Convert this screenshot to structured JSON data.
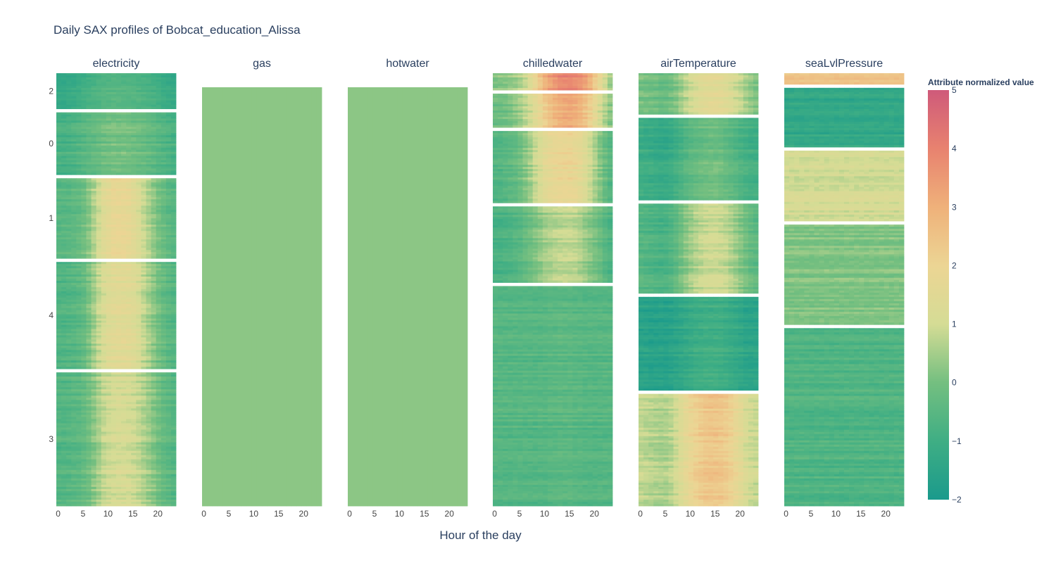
{
  "chart_data": {
    "type": "heatmap",
    "title": "Daily SAX profiles of Bobcat_education_Alissa",
    "xlabel": "Hour of the day",
    "x_tick_labels": [
      "0",
      "5",
      "10",
      "15",
      "20"
    ],
    "x_range": [
      0,
      23
    ],
    "colorbar": {
      "title": "Attribute normalized value",
      "range": [
        -2,
        5
      ],
      "tick_labels": [
        "5",
        "4",
        "3",
        "2",
        "1",
        "0",
        "−1",
        "−2"
      ],
      "colorscale": [
        "#1a9a8c",
        "#3fae84",
        "#74bf80",
        "#d5dc95",
        "#ecd594",
        "#efb17a",
        "#e8826f",
        "#cf5a7a"
      ]
    },
    "panels": [
      {
        "name": "electricity",
        "cluster_labels": [
          "2",
          "0",
          "1",
          "4",
          "3"
        ],
        "clusters": [
          {
            "label": "2",
            "rows": 40,
            "profile": [
              -1.4,
              -1.4,
              -1.35,
              -1.3,
              -1.2,
              -1.1,
              -1.0,
              -0.9,
              -0.8,
              -0.7,
              -0.7,
              -0.65,
              -0.65,
              -0.7,
              -0.7,
              -0.75,
              -0.8,
              -0.85,
              -0.9,
              -1.0,
              -1.1,
              -1.2,
              -1.3,
              -1.35
            ]
          },
          {
            "label": "0",
            "rows": 70,
            "profile": [
              -0.8,
              -0.8,
              -0.75,
              -0.7,
              -0.6,
              -0.5,
              -0.4,
              -0.3,
              -0.2,
              -0.1,
              -0.05,
              0.0,
              0.0,
              0.0,
              -0.05,
              -0.1,
              -0.15,
              -0.2,
              -0.3,
              -0.4,
              -0.5,
              -0.6,
              -0.7,
              -0.8
            ]
          },
          {
            "label": "1",
            "rows": 90,
            "profile": [
              -0.5,
              -0.5,
              -0.45,
              -0.4,
              -0.3,
              -0.1,
              0.2,
              0.6,
              1.0,
              1.4,
              1.6,
              1.8,
              1.8,
              1.8,
              1.7,
              1.5,
              1.2,
              0.9,
              0.6,
              0.3,
              0.0,
              -0.2,
              -0.4,
              -0.5
            ]
          },
          {
            "label": "4",
            "rows": 120,
            "profile": [
              -0.7,
              -0.7,
              -0.65,
              -0.6,
              -0.5,
              -0.3,
              0.0,
              0.4,
              0.8,
              1.1,
              1.3,
              1.4,
              1.45,
              1.45,
              1.4,
              1.3,
              1.1,
              0.8,
              0.5,
              0.2,
              -0.1,
              -0.3,
              -0.5,
              -0.6
            ]
          },
          {
            "label": "3",
            "rows": 150,
            "profile": [
              -0.6,
              -0.6,
              -0.55,
              -0.5,
              -0.45,
              -0.3,
              -0.1,
              0.2,
              0.5,
              0.8,
              0.95,
              1.05,
              1.1,
              1.1,
              1.05,
              0.95,
              0.8,
              0.6,
              0.4,
              0.15,
              -0.1,
              -0.3,
              -0.45,
              -0.55
            ]
          }
        ]
      },
      {
        "name": "gas",
        "cluster_labels": [],
        "clusters": [
          {
            "label": "",
            "rows": 120,
            "profile": [
              0.25,
              0.25,
              0.25,
              0.25,
              0.25,
              0.25,
              0.25,
              0.25,
              0.25,
              0.25,
              0.25,
              0.25,
              0.25,
              0.25,
              0.25,
              0.25,
              0.25,
              0.25,
              0.25,
              0.25,
              0.25,
              0.25,
              0.25,
              0.25
            ]
          }
        ]
      },
      {
        "name": "hotwater",
        "cluster_labels": [],
        "clusters": [
          {
            "label": "",
            "rows": 120,
            "profile": [
              0.25,
              0.25,
              0.25,
              0.25,
              0.25,
              0.25,
              0.25,
              0.25,
              0.25,
              0.25,
              0.25,
              0.25,
              0.25,
              0.25,
              0.25,
              0.25,
              0.25,
              0.25,
              0.25,
              0.25,
              0.25,
              0.25,
              0.25,
              0.25
            ]
          }
        ]
      },
      {
        "name": "chilledwater",
        "cluster_labels": [],
        "clusters": [
          {
            "label": "",
            "rows": 20,
            "profile": [
              0.2,
              0.2,
              0.3,
              0.4,
              0.5,
              0.7,
              1.0,
              1.4,
              1.9,
              2.5,
              3.0,
              3.4,
              3.7,
              3.9,
              4.0,
              4.0,
              3.9,
              3.7,
              3.4,
              3.0,
              2.4,
              1.8,
              1.2,
              0.6
            ]
          },
          {
            "label": "",
            "rows": 40,
            "profile": [
              -0.2,
              -0.2,
              -0.1,
              0.0,
              0.2,
              0.4,
              0.7,
              1.0,
              1.4,
              1.8,
              2.2,
              2.5,
              2.8,
              3.0,
              3.1,
              3.1,
              3.0,
              2.8,
              2.5,
              2.1,
              1.6,
              1.1,
              0.6,
              0.2
            ]
          },
          {
            "label": "",
            "rows": 85,
            "profile": [
              -0.6,
              -0.6,
              -0.5,
              -0.4,
              -0.3,
              -0.1,
              0.2,
              0.5,
              0.9,
              1.2,
              1.5,
              1.7,
              1.8,
              1.9,
              1.9,
              1.9,
              1.8,
              1.6,
              1.3,
              1.0,
              0.6,
              0.2,
              -0.2,
              -0.5
            ]
          },
          {
            "label": "",
            "rows": 90,
            "profile": [
              -0.8,
              -0.8,
              -0.75,
              -0.7,
              -0.6,
              -0.5,
              -0.3,
              -0.1,
              0.1,
              0.3,
              0.5,
              0.6,
              0.7,
              0.75,
              0.8,
              0.8,
              0.75,
              0.6,
              0.4,
              0.2,
              0.0,
              -0.2,
              -0.5,
              -0.7
            ]
          },
          {
            "label": "",
            "rows": 260,
            "profile": [
              -0.55,
              -0.55,
              -0.55,
              -0.55,
              -0.55,
              -0.55,
              -0.55,
              -0.55,
              -0.55,
              -0.55,
              -0.55,
              -0.5,
              -0.5,
              -0.45,
              -0.45,
              -0.45,
              -0.5,
              -0.5,
              -0.55,
              -0.55,
              -0.55,
              -0.55,
              -0.55,
              -0.55
            ]
          }
        ]
      },
      {
        "name": "airTemperature",
        "cluster_labels": [],
        "clusters": [
          {
            "label": "",
            "rows": 55,
            "profile": [
              0.0,
              -0.05,
              -0.1,
              -0.15,
              -0.2,
              -0.2,
              -0.1,
              0.1,
              0.4,
              0.7,
              1.0,
              1.2,
              1.35,
              1.45,
              1.5,
              1.5,
              1.45,
              1.35,
              1.2,
              1.0,
              0.8,
              0.5,
              0.3,
              0.1
            ]
          },
          {
            "label": "",
            "rows": 110,
            "profile": [
              -1.0,
              -1.05,
              -1.1,
              -1.15,
              -1.2,
              -1.2,
              -1.1,
              -0.95,
              -0.75,
              -0.55,
              -0.4,
              -0.3,
              -0.2,
              -0.15,
              -0.1,
              -0.1,
              -0.15,
              -0.25,
              -0.4,
              -0.55,
              -0.7,
              -0.8,
              -0.9,
              -0.95
            ]
          },
          {
            "label": "",
            "rows": 120,
            "profile": [
              -0.6,
              -0.65,
              -0.7,
              -0.75,
              -0.8,
              -0.8,
              -0.65,
              -0.4,
              -0.1,
              0.2,
              0.45,
              0.65,
              0.8,
              0.9,
              0.95,
              0.95,
              0.9,
              0.8,
              0.6,
              0.4,
              0.15,
              -0.1,
              -0.3,
              -0.45
            ]
          },
          {
            "label": "",
            "rows": 125,
            "profile": [
              -1.55,
              -1.55,
              -1.6,
              -1.6,
              -1.6,
              -1.6,
              -1.55,
              -1.45,
              -1.35,
              -1.25,
              -1.15,
              -1.05,
              -1.0,
              -0.95,
              -0.95,
              -0.95,
              -1.0,
              -1.05,
              -1.15,
              -1.25,
              -1.35,
              -1.45,
              -1.5,
              -1.5
            ]
          },
          {
            "label": "",
            "rows": 150,
            "profile": [
              0.8,
              0.75,
              0.7,
              0.65,
              0.6,
              0.6,
              0.75,
              1.0,
              1.3,
              1.6,
              1.9,
              2.1,
              2.3,
              2.4,
              2.45,
              2.45,
              2.4,
              2.3,
              2.1,
              1.8,
              1.5,
              1.2,
              1.0,
              0.9
            ]
          }
        ]
      },
      {
        "name": "seaLvlPressure",
        "cluster_labels": [],
        "clusters": [
          {
            "label": "",
            "rows": 15,
            "profile": [
              2.6,
              2.6,
              2.6,
              2.6,
              2.6,
              2.6,
              2.6,
              2.6,
              2.6,
              2.6,
              2.6,
              2.6,
              2.6,
              2.6,
              2.6,
              2.6,
              2.6,
              2.6,
              2.6,
              2.6,
              2.6,
              2.6,
              2.6,
              2.6
            ]
          },
          {
            "label": "",
            "rows": 80,
            "profile": [
              -1.3,
              -1.3,
              -1.3,
              -1.3,
              -1.3,
              -1.3,
              -1.3,
              -1.3,
              -1.3,
              -1.3,
              -1.3,
              -1.3,
              -1.3,
              -1.3,
              -1.3,
              -1.3,
              -1.3,
              -1.3,
              -1.3,
              -1.3,
              -1.3,
              -1.3,
              -1.3,
              -1.3
            ]
          },
          {
            "label": "",
            "rows": 95,
            "profile": [
              1.05,
              1.05,
              1.05,
              1.05,
              1.05,
              1.05,
              1.05,
              1.05,
              1.05,
              1.05,
              1.05,
              1.05,
              1.05,
              1.05,
              1.05,
              1.05,
              1.05,
              1.05,
              1.05,
              1.05,
              1.05,
              1.05,
              1.05,
              1.05
            ]
          },
          {
            "label": "",
            "rows": 135,
            "profile": [
              0.15,
              0.15,
              0.15,
              0.15,
              0.15,
              0.15,
              0.15,
              0.15,
              0.15,
              0.15,
              0.15,
              0.15,
              0.15,
              0.15,
              0.15,
              0.15,
              0.15,
              0.15,
              0.15,
              0.15,
              0.15,
              0.15,
              0.15,
              0.15
            ]
          },
          {
            "label": "",
            "rows": 240,
            "profile": [
              -0.65,
              -0.65,
              -0.65,
              -0.65,
              -0.65,
              -0.65,
              -0.65,
              -0.65,
              -0.65,
              -0.65,
              -0.65,
              -0.65,
              -0.65,
              -0.65,
              -0.65,
              -0.65,
              -0.65,
              -0.65,
              -0.65,
              -0.65,
              -0.65,
              -0.65,
              -0.65,
              -0.65
            ]
          }
        ]
      }
    ]
  }
}
